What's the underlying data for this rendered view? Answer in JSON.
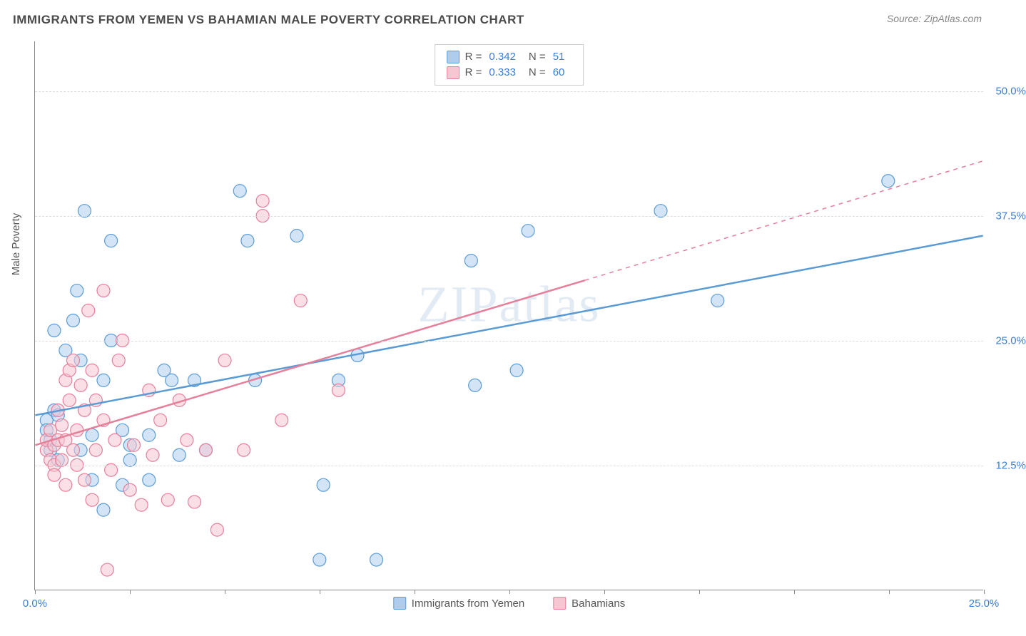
{
  "header": {
    "title": "IMMIGRANTS FROM YEMEN VS BAHAMIAN MALE POVERTY CORRELATION CHART",
    "source": "Source: ZipAtlas.com"
  },
  "chart": {
    "type": "scatter",
    "watermark": "ZIPatlas",
    "yaxis_title": "Male Poverty",
    "xlim": [
      0,
      25
    ],
    "ylim": [
      0,
      55
    ],
    "xtick_positions": [
      0,
      2.5,
      5,
      7.5,
      10,
      12.5,
      15,
      17.5,
      20,
      22.5,
      25
    ],
    "xtick_labels": {
      "0": "0.0%",
      "25": "25.0%"
    },
    "ytick_positions": [
      12.5,
      25,
      37.5,
      50
    ],
    "ytick_labels": {
      "12.5": "12.5%",
      "25": "25.0%",
      "37.5": "37.5%",
      "50": "50.0%"
    },
    "grid_color": "#dddddd",
    "background_color": "#ffffff",
    "marker_radius": 9,
    "marker_fill_opacity": 0.25,
    "marker_stroke_width": 1.2,
    "series": [
      {
        "name": "Immigrants from Yemen",
        "color": "#5b9bd5",
        "fill": "#aecdee",
        "R": "0.342",
        "N": "51",
        "trend": {
          "x1": 0,
          "y1": 17.5,
          "x2": 25,
          "y2": 35.5,
          "dash_from_x": null
        },
        "points": [
          [
            0.3,
            17
          ],
          [
            0.3,
            16
          ],
          [
            0.4,
            15
          ],
          [
            0.4,
            14
          ],
          [
            0.5,
            18
          ],
          [
            0.5,
            26
          ],
          [
            0.6,
            13
          ],
          [
            0.6,
            17.5
          ],
          [
            0.8,
            24
          ],
          [
            1.0,
            27
          ],
          [
            1.1,
            30
          ],
          [
            1.2,
            23
          ],
          [
            1.2,
            14
          ],
          [
            1.3,
            38
          ],
          [
            1.5,
            11
          ],
          [
            1.5,
            15.5
          ],
          [
            1.8,
            21
          ],
          [
            1.8,
            8
          ],
          [
            2.0,
            25
          ],
          [
            2.0,
            35
          ],
          [
            2.3,
            16
          ],
          [
            2.3,
            10.5
          ],
          [
            2.5,
            13
          ],
          [
            2.5,
            14.5
          ],
          [
            3.0,
            11
          ],
          [
            3.0,
            15.5
          ],
          [
            3.4,
            22
          ],
          [
            3.6,
            21
          ],
          [
            3.8,
            13.5
          ],
          [
            4.2,
            21
          ],
          [
            4.5,
            14
          ],
          [
            5.4,
            40
          ],
          [
            5.6,
            35
          ],
          [
            5.8,
            21
          ],
          [
            6.9,
            35.5
          ],
          [
            7.5,
            3
          ],
          [
            7.6,
            10.5
          ],
          [
            8.0,
            21
          ],
          [
            8.5,
            23.5
          ],
          [
            9.0,
            3
          ],
          [
            11.5,
            33
          ],
          [
            11.6,
            20.5
          ],
          [
            12.7,
            22
          ],
          [
            13.0,
            36
          ],
          [
            16.5,
            38
          ],
          [
            18.0,
            29
          ],
          [
            22.5,
            41
          ]
        ]
      },
      {
        "name": "Bahamians",
        "color": "#e57f9a",
        "fill": "#f6c6d2",
        "R": "0.333",
        "N": "60",
        "trend": {
          "x1": 0,
          "y1": 14.5,
          "x2": 25,
          "y2": 43,
          "dash_from_x": 14.5
        },
        "points": [
          [
            0.3,
            14
          ],
          [
            0.3,
            15
          ],
          [
            0.4,
            13
          ],
          [
            0.4,
            16
          ],
          [
            0.5,
            14.5
          ],
          [
            0.5,
            12.5
          ],
          [
            0.5,
            11.5
          ],
          [
            0.6,
            15
          ],
          [
            0.6,
            18
          ],
          [
            0.7,
            13
          ],
          [
            0.7,
            16.5
          ],
          [
            0.8,
            21
          ],
          [
            0.8,
            15
          ],
          [
            0.8,
            10.5
          ],
          [
            0.9,
            19
          ],
          [
            0.9,
            22
          ],
          [
            1.0,
            23
          ],
          [
            1.0,
            14
          ],
          [
            1.1,
            16
          ],
          [
            1.1,
            12.5
          ],
          [
            1.2,
            20.5
          ],
          [
            1.3,
            18
          ],
          [
            1.3,
            11
          ],
          [
            1.4,
            28
          ],
          [
            1.5,
            22
          ],
          [
            1.5,
            9
          ],
          [
            1.6,
            19
          ],
          [
            1.6,
            14
          ],
          [
            1.8,
            30
          ],
          [
            1.8,
            17
          ],
          [
            1.9,
            2
          ],
          [
            2.0,
            12
          ],
          [
            2.1,
            15
          ],
          [
            2.2,
            23
          ],
          [
            2.3,
            25
          ],
          [
            2.5,
            10
          ],
          [
            2.6,
            14.5
          ],
          [
            2.8,
            8.5
          ],
          [
            3.0,
            20
          ],
          [
            3.1,
            13.5
          ],
          [
            3.3,
            17
          ],
          [
            3.5,
            9
          ],
          [
            3.8,
            19
          ],
          [
            4.0,
            15
          ],
          [
            4.2,
            8.8
          ],
          [
            4.5,
            14
          ],
          [
            4.8,
            6
          ],
          [
            5.0,
            23
          ],
          [
            5.5,
            14
          ],
          [
            6.0,
            39
          ],
          [
            6.0,
            37.5
          ],
          [
            6.5,
            17
          ],
          [
            7.0,
            29
          ],
          [
            8.0,
            20
          ]
        ]
      }
    ],
    "legend_top": {
      "r_label": "R =",
      "n_label": "N ="
    },
    "legend_bottom": {
      "items": [
        "Immigrants from Yemen",
        "Bahamians"
      ]
    }
  }
}
